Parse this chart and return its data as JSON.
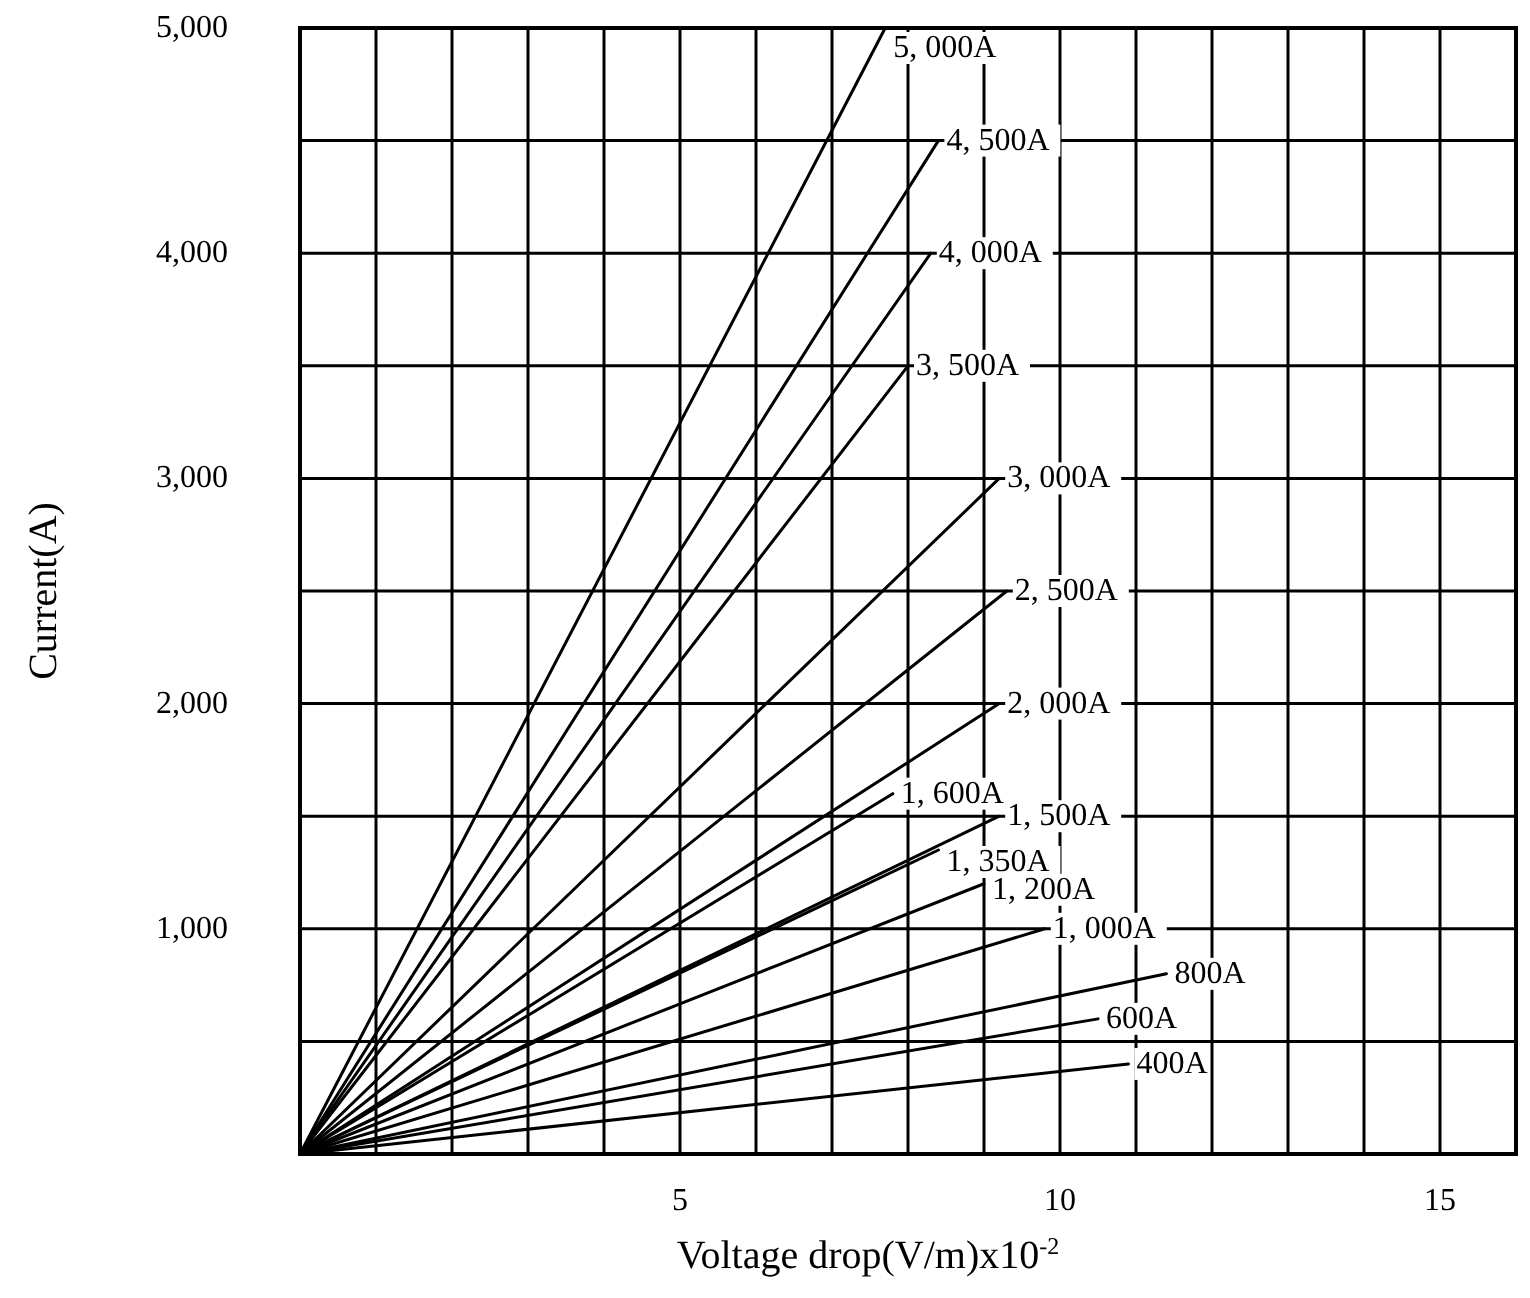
{
  "chart_data": {
    "type": "line",
    "xlabel": "Voltage drop(V/m)x10$^{-2}$",
    "ylabel": "Current(A)",
    "xlim": [
      0,
      16
    ],
    "ylim": [
      0,
      5000
    ],
    "xticks": [
      {
        "value": 1,
        "label": null
      },
      {
        "value": 2,
        "label": null
      },
      {
        "value": 3,
        "label": null
      },
      {
        "value": 4,
        "label": null
      },
      5,
      {
        "value": 6,
        "label": null
      },
      {
        "value": 7,
        "label": null
      },
      {
        "value": 8,
        "label": null
      },
      {
        "value": 9,
        "label": null
      },
      10,
      {
        "value": 11,
        "label": null
      },
      {
        "value": 12,
        "label": null
      },
      {
        "value": 13,
        "label": null
      },
      {
        "value": 14,
        "label": null
      },
      15
    ],
    "yticks": [
      {
        "value": 500,
        "label": null
      },
      {
        "value": 1000,
        "label": "1,000"
      },
      {
        "value": 1500,
        "label": null
      },
      {
        "value": 2000,
        "label": "2,000"
      },
      {
        "value": 2500,
        "label": null
      },
      {
        "value": 3000,
        "label": "3,000"
      },
      {
        "value": 3500,
        "label": null
      },
      {
        "value": 4000,
        "label": "4,000"
      },
      {
        "value": 4500,
        "label": null
      },
      {
        "value": 5000,
        "label": "5,000"
      }
    ],
    "grid": true,
    "legend": false,
    "marker": "none",
    "line_style": "solid",
    "series": [
      {
        "name": "5, 000A",
        "color": "#000000",
        "x": [
          0,
          7.7
        ],
        "values": [
          0,
          5000
        ]
      },
      {
        "name": "4, 500A",
        "color": "#000000",
        "x": [
          0,
          8.4
        ],
        "values": [
          0,
          4500
        ]
      },
      {
        "name": "4, 000A",
        "color": "#000000",
        "x": [
          0,
          8.3
        ],
        "values": [
          0,
          4000
        ]
      },
      {
        "name": "3, 500A",
        "color": "#000000",
        "x": [
          0,
          8.0
        ],
        "values": [
          0,
          3500
        ]
      },
      {
        "name": "3, 000A",
        "color": "#000000",
        "x": [
          0,
          9.2
        ],
        "values": [
          0,
          3000
        ]
      },
      {
        "name": "2, 500A",
        "color": "#000000",
        "x": [
          0,
          9.3
        ],
        "values": [
          0,
          2500
        ]
      },
      {
        "name": "2, 000A",
        "color": "#000000",
        "x": [
          0,
          9.2
        ],
        "values": [
          0,
          2000
        ]
      },
      {
        "name": "1, 600A",
        "color": "#000000",
        "x": [
          0,
          7.8
        ],
        "values": [
          0,
          1600
        ]
      },
      {
        "name": "1, 500A",
        "color": "#000000",
        "x": [
          0,
          9.2
        ],
        "values": [
          0,
          1500
        ]
      },
      {
        "name": "1, 350A",
        "color": "#000000",
        "x": [
          0,
          8.4
        ],
        "values": [
          0,
          1350
        ]
      },
      {
        "name": "1, 200A",
        "color": "#000000",
        "x": [
          0,
          9.0
        ],
        "values": [
          0,
          1200
        ]
      },
      {
        "name": "1, 000A",
        "color": "#000000",
        "x": [
          0,
          9.8
        ],
        "values": [
          0,
          1000
        ]
      },
      {
        "name": "800A",
        "color": "#000000",
        "x": [
          0,
          11.4
        ],
        "values": [
          0,
          800
        ]
      },
      {
        "name": "600A",
        "color": "#000000",
        "x": [
          0,
          10.5
        ],
        "values": [
          0,
          600
        ]
      },
      {
        "name": "400A",
        "color": "#000000",
        "x": [
          0,
          10.9
        ],
        "values": [
          0,
          400
        ]
      }
    ]
  }
}
